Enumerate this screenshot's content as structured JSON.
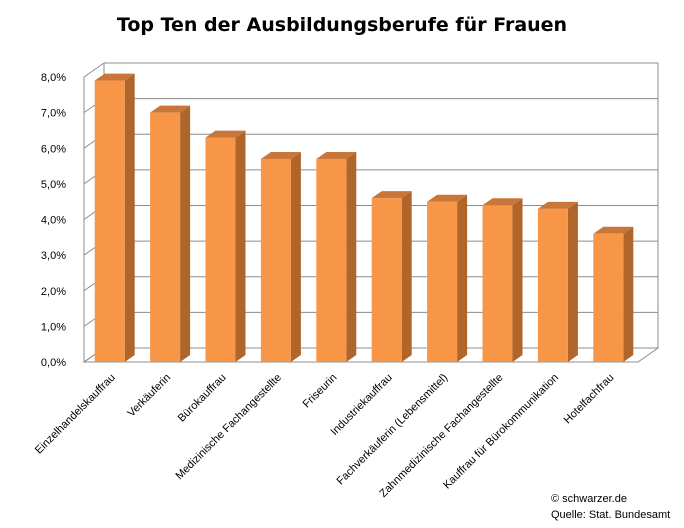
{
  "chart_data": {
    "type": "bar",
    "title": "Top Ten der Ausbildungsberufe für Frauen",
    "categories": [
      "Einzelhandelskauffrau",
      "Verkäuferin",
      "Bürokauffrau",
      "Medizinische Fachangestellte",
      "Friseurin",
      "Industriekauffrau",
      "Fachverkäuferin (Lebensmittel)",
      "Zahnmedizinische Fachangestellte",
      "Kauffrau für Bürokommunikation",
      "Hotelfachfrau"
    ],
    "values": [
      7.9,
      7.0,
      6.3,
      5.7,
      5.7,
      4.6,
      4.5,
      4.4,
      4.3,
      3.6
    ],
    "y_unit": "%",
    "ylim": [
      0,
      8
    ],
    "yticks": [
      "0,0%",
      "1,0%",
      "2,0%",
      "3,0%",
      "4,0%",
      "5,0%",
      "6,0%",
      "7,0%",
      "8,0%"
    ],
    "grid": true,
    "legend": "none",
    "bar_color": "#F79646",
    "bar_side_color": "#B0652A",
    "bar_top_color": "#C9763A",
    "credits": [
      "© schwarzer.de",
      "Quelle: Stat. Bundesamt"
    ]
  }
}
